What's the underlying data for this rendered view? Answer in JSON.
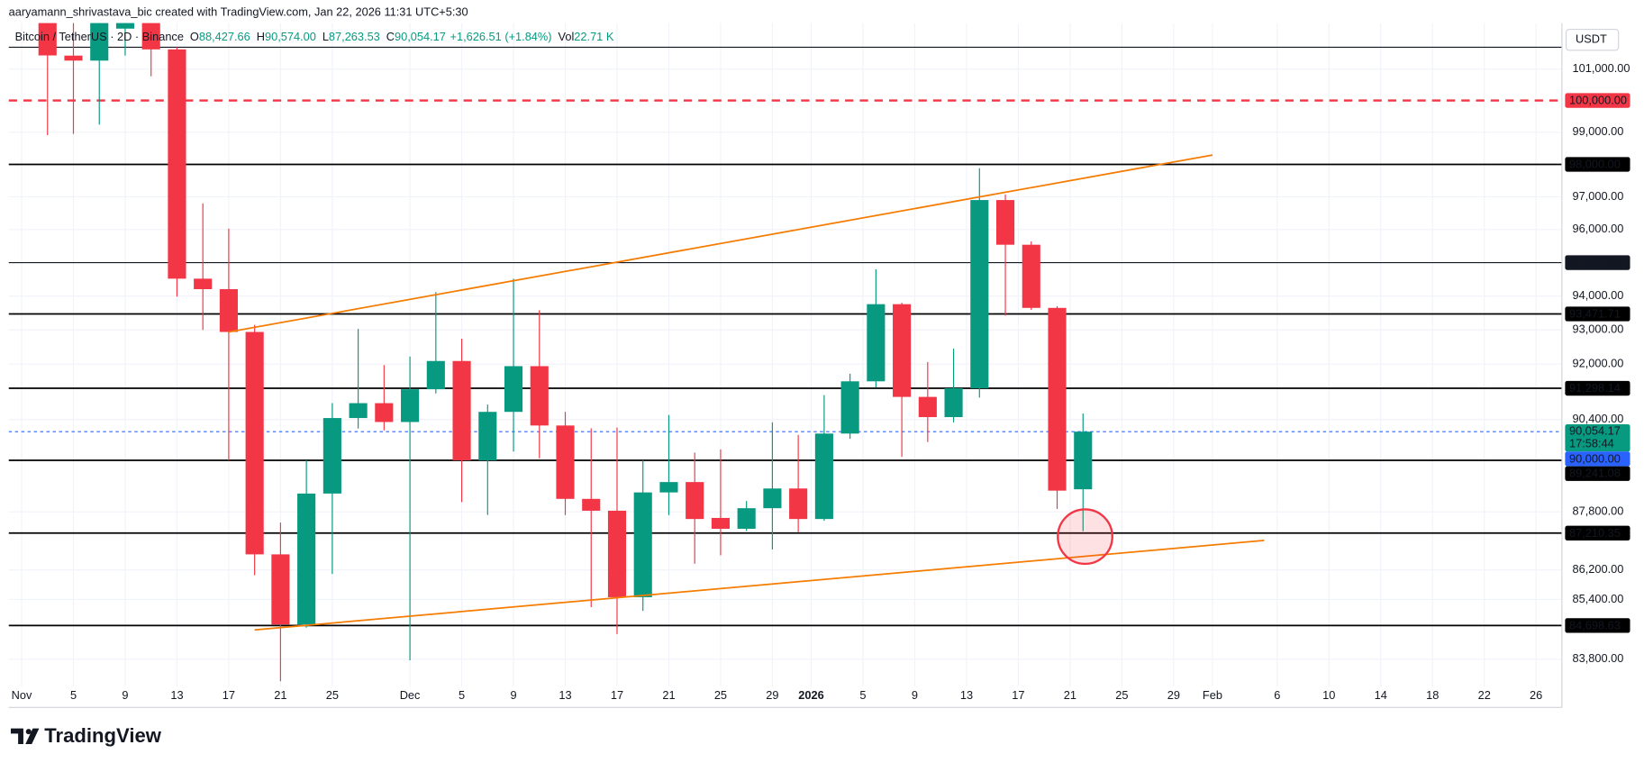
{
  "header": {
    "credit": "aaryamann_shrivastava_bic created with TradingView.com, Jan 22, 2026 11:31 UTC+5:30",
    "symbol": "Bitcoin / TetherUS · 2D · Binance",
    "fields": [
      {
        "key": "O",
        "value": "88,427.66"
      },
      {
        "key": "H",
        "value": "90,574.00"
      },
      {
        "key": "L",
        "value": "87,263.53"
      },
      {
        "key": "C",
        "value": "90,054.17"
      }
    ],
    "change": "+1,626.51 (+1.84%)",
    "volume": {
      "key": "Vol",
      "value": "22.71 K"
    }
  },
  "chart_data": {
    "type": "candlestick",
    "x": [
      "Nov 3",
      "Nov 5",
      "Nov 7",
      "Nov 9",
      "Nov 11",
      "Nov 13",
      "Nov 15",
      "Nov 17",
      "Nov 19",
      "Nov 21",
      "Nov 23",
      "Nov 25",
      "Nov 27",
      "Nov 29",
      "Dec 1",
      "Dec 3",
      "Dec 5",
      "Dec 7",
      "Dec 9",
      "Dec 11",
      "Dec 13",
      "Dec 15",
      "Dec 17",
      "Dec 19",
      "Dec 21",
      "Dec 23",
      "Dec 25",
      "Dec 27",
      "Dec 29",
      "Dec 31",
      "Jan 2",
      "Jan 4",
      "Jan 6",
      "Jan 8",
      "Jan 10",
      "Jan 12",
      "Jan 14",
      "Jan 16",
      "Jan 18",
      "Jan 20",
      "Jan 22"
    ],
    "open": [
      102600,
      101430,
      101270,
      102300,
      102700,
      101630,
      94520,
      94207,
      92940,
      86626,
      84726,
      88309,
      90443,
      90870,
      90330,
      91270,
      92090,
      89241,
      90620,
      91940,
      90230,
      88160,
      87830,
      85460,
      88340,
      88630,
      87630,
      87330,
      87900,
      88450,
      87600,
      90000,
      91500,
      93760,
      91050,
      90470,
      91300,
      96900,
      95540,
      93650,
      88427.66
    ],
    "high": [
      103200,
      102600,
      103000,
      102800,
      103000,
      101700,
      96800,
      96030,
      93150,
      87500,
      89241,
      90870,
      93030,
      91970,
      92220,
      94120,
      92740,
      90830,
      94520,
      93580,
      90620,
      90150,
      90170,
      89241,
      90530,
      89460,
      89550,
      88100,
      90320,
      89960,
      91100,
      91720,
      94800,
      93800,
      92060,
      92450,
      97880,
      97070,
      95640,
      93700,
      90574
    ],
    "low": [
      98910,
      98950,
      99240,
      101430,
      100770,
      93985,
      93000,
      89241,
      86057,
      83218,
      84640,
      86090,
      90145,
      90090,
      83770,
      91150,
      88070,
      87713,
      89490,
      89300,
      87710,
      85190,
      84470,
      85090,
      87710,
      86370,
      86600,
      87270,
      86760,
      87240,
      87550,
      89850,
      91320,
      89340,
      89760,
      90320,
      91030,
      93420,
      93590,
      87880,
      87263.53
    ],
    "close": [
      101436,
      101270,
      102600,
      102500,
      101630,
      94520,
      94207,
      92940,
      86626,
      84726,
      88309,
      90443,
      90870,
      90330,
      91270,
      92090,
      89241,
      90620,
      91940,
      90230,
      88160,
      87830,
      85460,
      88340,
      88630,
      87600,
      87330,
      87900,
      88450,
      87600,
      90000,
      91500,
      93760,
      91050,
      90470,
      91300,
      96900,
      95540,
      93650,
      88390,
      90054.17
    ],
    "up_color": "#089981",
    "down_color": "#f23645",
    "xlim": [
      "Oct 31",
      "Feb 28"
    ],
    "xticks": [
      {
        "value": "Nov 1",
        "label": "Nov"
      },
      {
        "value": "Nov 5",
        "label": "5"
      },
      {
        "value": "Nov 9",
        "label": "9"
      },
      {
        "value": "Nov 13",
        "label": "13"
      },
      {
        "value": "Nov 17",
        "label": "17"
      },
      {
        "value": "Nov 21",
        "label": "21"
      },
      {
        "value": "Nov 25",
        "label": "25"
      },
      {
        "value": "Dec 1",
        "label": "Dec"
      },
      {
        "value": "Dec 5",
        "label": "5"
      },
      {
        "value": "Dec 9",
        "label": "9"
      },
      {
        "value": "Dec 13",
        "label": "13"
      },
      {
        "value": "Dec 17",
        "label": "17"
      },
      {
        "value": "Dec 21",
        "label": "21"
      },
      {
        "value": "Dec 25",
        "label": "25"
      },
      {
        "value": "Dec 29",
        "label": "29"
      },
      {
        "value": "Jan 1",
        "label": "2026",
        "bold": true
      },
      {
        "value": "Jan 5",
        "label": "5"
      },
      {
        "value": "Jan 9",
        "label": "9"
      },
      {
        "value": "Jan 13",
        "label": "13"
      },
      {
        "value": "Jan 17",
        "label": "17"
      },
      {
        "value": "Jan 21",
        "label": "21"
      },
      {
        "value": "Jan 25",
        "label": "25"
      },
      {
        "value": "Jan 29",
        "label": "29"
      },
      {
        "value": "Feb 1",
        "label": "Feb"
      },
      {
        "value": "Feb 6",
        "label": "6"
      },
      {
        "value": "Feb 10",
        "label": "10"
      },
      {
        "value": "Feb 14",
        "label": "14"
      },
      {
        "value": "Feb 18",
        "label": "18"
      },
      {
        "value": "Feb 22",
        "label": "22"
      },
      {
        "value": "Feb 26",
        "label": "26"
      }
    ],
    "ylim": [
      83080,
      102480
    ],
    "log_scale": true,
    "grid": true,
    "yticks": [
      {
        "value": 83800,
        "label": "83,800.00"
      },
      {
        "value": 85400,
        "label": "85,400.00"
      },
      {
        "value": 86200,
        "label": "86,200.00"
      },
      {
        "value": 87800,
        "label": "87,800.00"
      },
      {
        "value": 90400,
        "label": "90,400.00"
      },
      {
        "value": 92000,
        "label": "92,000.00"
      },
      {
        "value": 93000,
        "label": "93,000.00"
      },
      {
        "value": 94000,
        "label": "94,000.00"
      },
      {
        "value": 96000,
        "label": "96,000.00"
      },
      {
        "value": 97000,
        "label": "97,000.00"
      },
      {
        "value": 99000,
        "label": "99,000.00"
      },
      {
        "value": 101000,
        "label": "101,000.00"
      }
    ],
    "currency": "USDT",
    "levels": [
      {
        "value": 101700,
        "color": "#131722",
        "width": 1
      },
      {
        "value": 100000,
        "label": "100,000.00",
        "color": "#f23645",
        "width": 2,
        "dashed": true
      },
      {
        "value": 98000,
        "label": "98,000.00",
        "color": "#000000",
        "width": 1.5
      },
      {
        "value": 95000,
        "label": "95,000.00",
        "color": "#131722",
        "width": 1
      },
      {
        "value": 93471.71,
        "label": "93,471.71",
        "color": "#000000",
        "width": 1.5
      },
      {
        "value": 91298.14,
        "label": "91,298.14",
        "color": "#000000",
        "width": 1.5
      },
      {
        "value": 89241.08,
        "label": "89,241.08",
        "color": "#000000",
        "width": 1.5
      },
      {
        "value": 87210.35,
        "label": "87,210.35",
        "color": "#000000",
        "width": 1.5
      },
      {
        "value": 84698.63,
        "label": "84,698.63",
        "color": "#000000",
        "width": 1.5
      }
    ],
    "trendlines": [
      {
        "x": [
          "Nov 17",
          "Feb 1"
        ],
        "y": [
          92940,
          98290
        ],
        "color": "#f57c00"
      },
      {
        "x": [
          "Nov 19",
          "Feb 5"
        ],
        "y": [
          84580,
          87010
        ],
        "color": "#f57c00"
      }
    ],
    "last_price": {
      "value": 90054.17,
      "label": "90,054.17",
      "countdown": "17:58:44",
      "color": "#089981",
      "line_color": "#2962ff"
    },
    "alert": {
      "value": 90000,
      "label": "90,000.00",
      "color": "#2962ff"
    }
  },
  "footer": {
    "brand": "TradingView"
  }
}
